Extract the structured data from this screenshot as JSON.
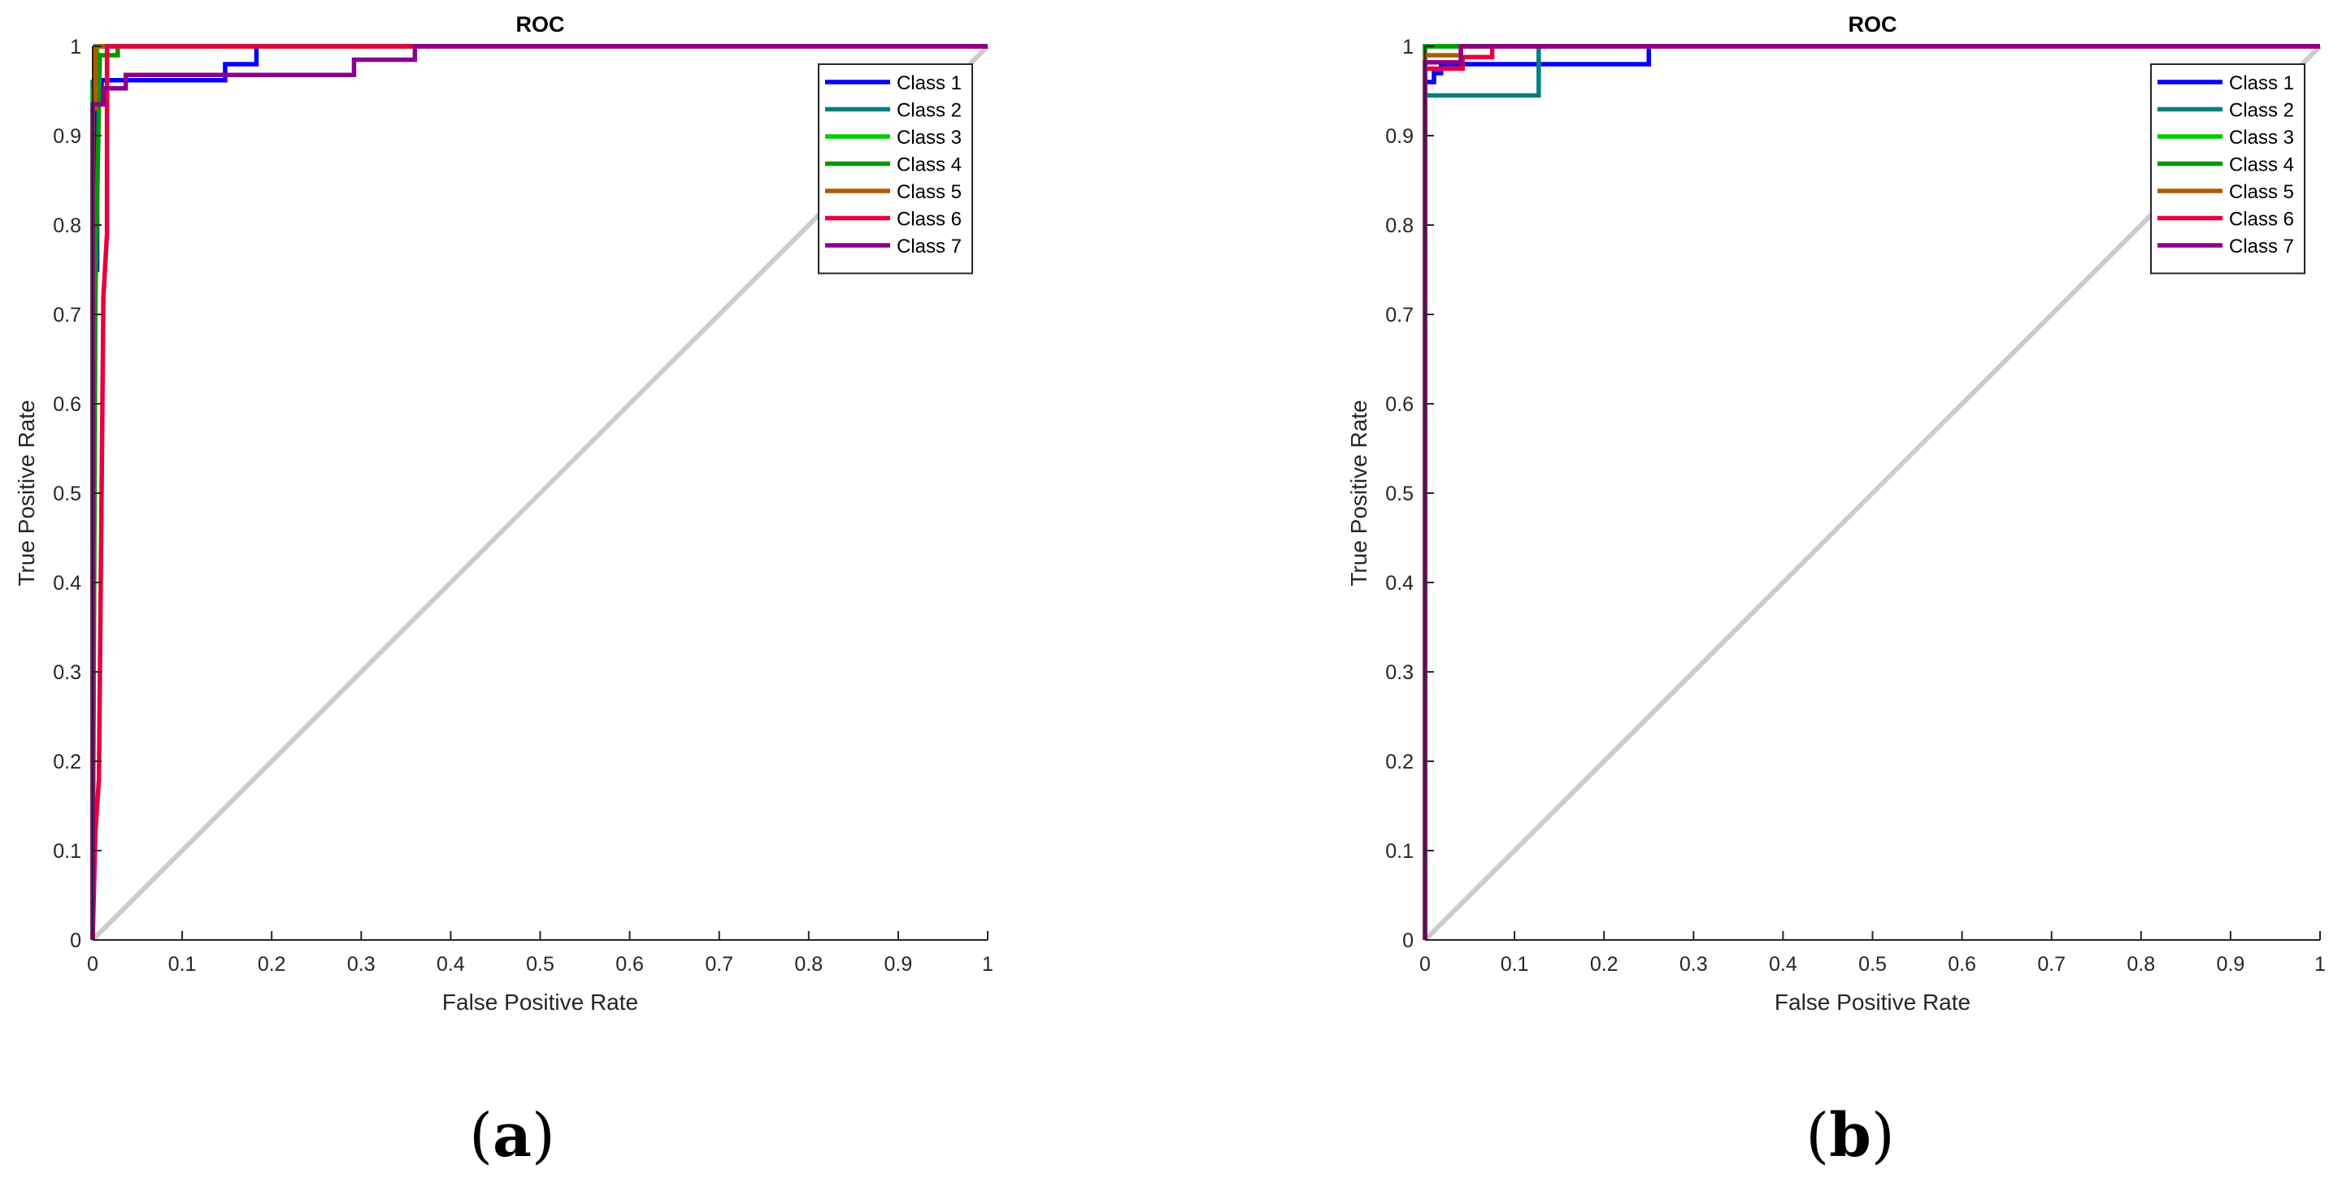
{
  "chart_data": [
    {
      "type": "line",
      "panel_label": "a",
      "title": "ROC",
      "xlabel": "False Positive Rate",
      "ylabel": "True Positive Rate",
      "xlim": [
        0,
        1
      ],
      "ylim": [
        0,
        1
      ],
      "xticks": [
        "0",
        "0.1",
        "0.2",
        "0.3",
        "0.4",
        "0.5",
        "0.6",
        "0.7",
        "0.8",
        "0.9",
        "1"
      ],
      "yticks": [
        "0",
        "0.1",
        "0.2",
        "0.3",
        "0.4",
        "0.5",
        "0.6",
        "0.7",
        "0.8",
        "0.9",
        "1"
      ],
      "grid": false,
      "legend_position": "top-right",
      "diagonal": {
        "x": [
          0,
          1
        ],
        "y": [
          0,
          1
        ],
        "color": "#cccccc"
      },
      "series": [
        {
          "name": "Class 1",
          "color": "#0000ff",
          "x": [
            0,
            0,
            0.005,
            0.005,
            0.01,
            0.01,
            0.148,
            0.148,
            0.183,
            0.183,
            1
          ],
          "y": [
            0,
            0.75,
            0.75,
            0.95,
            0.95,
            0.962,
            0.962,
            0.98,
            0.98,
            1,
            1
          ]
        },
        {
          "name": "Class 2",
          "color": "#008080",
          "x": [
            0,
            0,
            0.005,
            0.005,
            1
          ],
          "y": [
            0,
            0.96,
            0.96,
            1,
            1
          ]
        },
        {
          "name": "Class 3",
          "color": "#00cc00",
          "x": [
            0,
            0,
            0.005,
            0.005,
            1
          ],
          "y": [
            0,
            0.95,
            0.95,
            1,
            1
          ]
        },
        {
          "name": "Class 4",
          "color": "#009900",
          "x": [
            0,
            0.003,
            0.003,
            0.008,
            0.008,
            0.028,
            0.028,
            1
          ],
          "y": [
            0,
            0.72,
            0.72,
            0.99,
            0.99,
            0.99,
            1,
            1
          ]
        },
        {
          "name": "Class 5",
          "color": "#b35900",
          "x": [
            0,
            0,
            0.003,
            0.003,
            1
          ],
          "y": [
            0,
            0.93,
            0.93,
            1,
            1
          ]
        },
        {
          "name": "Class 6",
          "color": "#e6003d",
          "x": [
            0,
            0.003,
            0.003,
            0.007,
            0.007,
            0.012,
            0.012,
            0.016,
            0.016,
            1
          ],
          "y": [
            0,
            0.12,
            0.12,
            0.18,
            0.18,
            0.72,
            0.72,
            0.79,
            0.79,
            1
          ],
          "y_fix": [
            0,
            0.12,
            0.12,
            0.18,
            0.18,
            0.72,
            0.72,
            0.79,
            1,
            1
          ]
        },
        {
          "name": "Class 7",
          "color": "#8b008b",
          "x": [
            0,
            0,
            0.012,
            0.012,
            0.037,
            0.037,
            0.292,
            0.292,
            0.36,
            0.36,
            1
          ],
          "y": [
            0,
            0.935,
            0.935,
            0.953,
            0.953,
            0.968,
            0.968,
            0.985,
            0.985,
            1,
            1
          ]
        }
      ]
    },
    {
      "type": "line",
      "panel_label": "b",
      "title": "ROC",
      "xlabel": "False Positive Rate",
      "ylabel": "True Positive Rate",
      "xlim": [
        0,
        1
      ],
      "ylim": [
        0,
        1
      ],
      "xticks": [
        "0",
        "0.1",
        "0.2",
        "0.3",
        "0.4",
        "0.5",
        "0.6",
        "0.7",
        "0.8",
        "0.9",
        "1"
      ],
      "yticks": [
        "0",
        "0.1",
        "0.2",
        "0.3",
        "0.4",
        "0.5",
        "0.6",
        "0.7",
        "0.8",
        "0.9",
        "1"
      ],
      "grid": false,
      "legend_position": "top-right",
      "diagonal": {
        "x": [
          0,
          1
        ],
        "y": [
          0,
          1
        ],
        "color": "#cccccc"
      },
      "series": [
        {
          "name": "Class 1",
          "color": "#0000ff",
          "x": [
            0,
            0,
            0.01,
            0.01,
            0.018,
            0.018,
            0.25,
            0.25,
            1
          ],
          "y": [
            0,
            0.96,
            0.96,
            0.97,
            0.97,
            0.98,
            0.98,
            1,
            1
          ]
        },
        {
          "name": "Class 2",
          "color": "#008080",
          "x": [
            0,
            0,
            0.127,
            0.127,
            1
          ],
          "y": [
            0,
            0.945,
            0.945,
            1,
            1
          ]
        },
        {
          "name": "Class 3",
          "color": "#00cc00",
          "x": [
            0,
            0,
            1
          ],
          "y": [
            0,
            1,
            1
          ]
        },
        {
          "name": "Class 4",
          "color": "#009900",
          "x": [
            0,
            0,
            1
          ],
          "y": [
            0,
            1,
            1
          ]
        },
        {
          "name": "Class 5",
          "color": "#b35900",
          "x": [
            0,
            0,
            0.04,
            0.04,
            1
          ],
          "y": [
            0,
            0.99,
            0.99,
            1,
            1
          ]
        },
        {
          "name": "Class 6",
          "color": "#e6003d",
          "x": [
            0,
            0,
            0.042,
            0.042,
            0.075,
            0.075,
            1
          ],
          "y": [
            0,
            0.975,
            0.975,
            0.988,
            0.988,
            1,
            1
          ]
        },
        {
          "name": "Class 7",
          "color": "#8b008b",
          "x": [
            0,
            0,
            0.04,
            0.04,
            1
          ],
          "y": [
            0,
            0.982,
            0.982,
            1,
            1
          ]
        }
      ]
    }
  ]
}
